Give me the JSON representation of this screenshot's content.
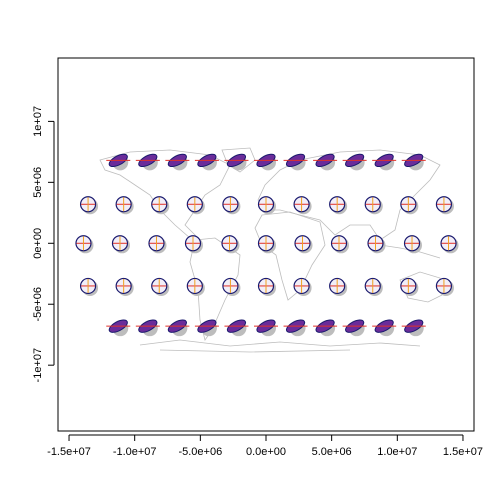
{
  "chart_data": {
    "type": "tissot",
    "xlim": [
      -15840000,
      15840000
    ],
    "ylim": [
      -15400000,
      15200000
    ],
    "xticks": [
      {
        "value": -15000000,
        "label": "-1.5e+07"
      },
      {
        "value": -10000000,
        "label": "-1.0e+07"
      },
      {
        "value": -5000000,
        "label": "-5.0e+06"
      },
      {
        "value": 0,
        "label": "0.0e+00"
      },
      {
        "value": 5000000,
        "label": "5.0e+06"
      },
      {
        "value": 10000000,
        "label": "1.0e+07"
      },
      {
        "value": 15000000,
        "label": "1.5e+07"
      }
    ],
    "yticks": [
      {
        "value": -10000000,
        "label": "-1e+07"
      },
      {
        "value": -5000000,
        "label": "-5e+06"
      },
      {
        "value": 0,
        "label": "0e+00"
      },
      {
        "value": 5000000,
        "label": "5e+06"
      },
      {
        "value": 10000000,
        "label": "1e+07"
      }
    ],
    "x": [
      -11250000,
      -9000000,
      -6750000,
      -4500000,
      -2250000,
      0,
      2250000,
      4500000,
      6750000,
      9000000,
      11250000,
      -13550000,
      -10840000,
      -8130000,
      -5420000,
      -2710000,
      0,
      2710000,
      5420000,
      8130000,
      10840000,
      13550000,
      -13900000,
      -11120000,
      -8340000,
      -5560000,
      -2780000,
      0,
      2780000,
      5560000,
      8340000,
      11120000,
      13900000,
      -13550000,
      -10840000,
      -8130000,
      -5420000,
      -2710000,
      0,
      2710000,
      5420000,
      8130000,
      10840000,
      13550000,
      -11250000,
      -9000000,
      -6750000,
      -4500000,
      -2250000,
      0,
      2250000,
      4500000,
      6750000,
      9000000,
      11250000
    ],
    "values": [
      6800000,
      6800000,
      6800000,
      6800000,
      6800000,
      6800000,
      6800000,
      6800000,
      6800000,
      6800000,
      6800000,
      3200000,
      3200000,
      3200000,
      3200000,
      3200000,
      3200000,
      3200000,
      3200000,
      3200000,
      3200000,
      3200000,
      0,
      0,
      0,
      0,
      0,
      0,
      0,
      0,
      0,
      0,
      0,
      -3500000,
      -3500000,
      -3500000,
      -3500000,
      -3500000,
      -3500000,
      -3500000,
      -3500000,
      -3500000,
      -3500000,
      -3500000,
      -6800000,
      -6800000,
      -6800000,
      -6800000,
      -6800000,
      -6800000,
      -6800000,
      -6800000,
      -6800000,
      -6800000,
      -6800000
    ]
  }
}
